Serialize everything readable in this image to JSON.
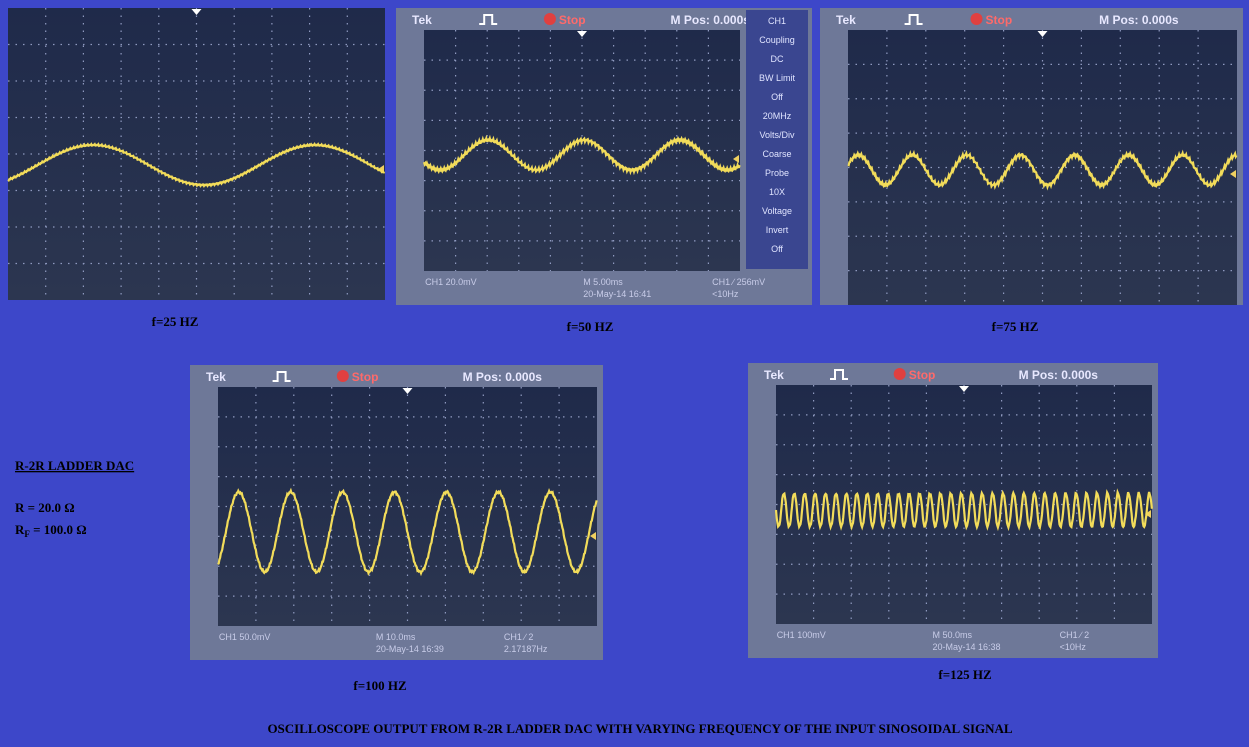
{
  "panels": [
    {
      "label": "f=25 HZ"
    },
    {
      "label": "f=50 HZ",
      "header": {
        "brand": "Tek",
        "status": "Stop",
        "position": "M Pos: 0.000s"
      },
      "menu": [
        "CH1",
        "Coupling",
        "DC",
        "BW Limit",
        "Off",
        "20MHz",
        "Volts/Div",
        "Coarse",
        "Probe",
        "10X",
        "Voltage",
        "Invert",
        "Off"
      ],
      "footer": [
        "CH1 20.0mV",
        "M 5.00ms",
        "CH1 ∕ 256mV",
        "20-May-14 16:41",
        "<10Hz"
      ]
    },
    {
      "label": "f=75 HZ",
      "header": {
        "brand": "Tek",
        "status": "Stop",
        "position": "M Pos: 0.000s"
      }
    },
    {
      "label": "f=100 HZ",
      "header": {
        "brand": "Tek",
        "status": "Stop",
        "position": "M Pos: 0.000s"
      },
      "footer": [
        "CH1 50.0mV",
        "M 10.0ms",
        "CH1 ∕ 2",
        "20-May-14 16:39",
        "2.17187Hz"
      ]
    },
    {
      "label": "f=125 HZ",
      "header": {
        "brand": "Tek",
        "status": "Stop",
        "position": "M Pos: 0.000s"
      },
      "footer": [
        "CH1 100mV",
        "M 50.0ms",
        "CH1 ∕ 2",
        "20-May-14 16:38",
        "<10Hz"
      ]
    }
  ],
  "side_note": {
    "title": "R-2R LADDER DAC",
    "r": "R = 20.0 Ω",
    "rf": {
      "symbol": "R",
      "subscript": "F",
      "rest": " = 100.0 Ω"
    }
  },
  "caption": "OSCILLOSCOPE OUTPUT FROM R-2R LADDER DAC WITH VARYING FREQUENCY OF THE INPUT SINOSOIDAL SIGNAL"
}
